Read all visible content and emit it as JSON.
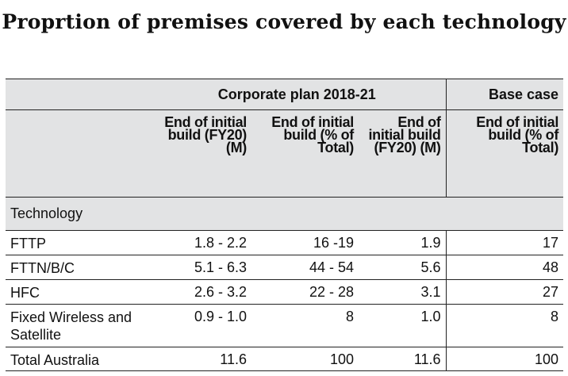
{
  "title": "Proprtion of premises covered by each technology",
  "table": {
    "groups": {
      "corporate_plan": "Corporate plan 2018-21",
      "base_case": "Base case"
    },
    "columns": [
      "End of initial build (FY20) (M)",
      "End of initial build (% of Total)",
      "End of initial build (FY20) (M)",
      "End of initial build (% of Total)"
    ],
    "row_header": "Technology",
    "rows": [
      {
        "label": "FTTP",
        "values": [
          "1.8 - 2.2",
          "16 -19",
          "1.9",
          "17"
        ]
      },
      {
        "label": "FTTN/B/C",
        "values": [
          "5.1 - 6.3",
          "44 - 54",
          "5.6",
          "48"
        ]
      },
      {
        "label": "HFC",
        "values": [
          "2.6 - 3.2",
          "22 - 28",
          "3.1",
          "27"
        ]
      },
      {
        "label": "Fixed Wireless and Satellite",
        "values": [
          "0.9 - 1.0",
          "8",
          "1.0",
          "8"
        ]
      },
      {
        "label": "Total Australia",
        "values": [
          "11.6",
          "100",
          "11.6",
          "100"
        ]
      }
    ]
  }
}
